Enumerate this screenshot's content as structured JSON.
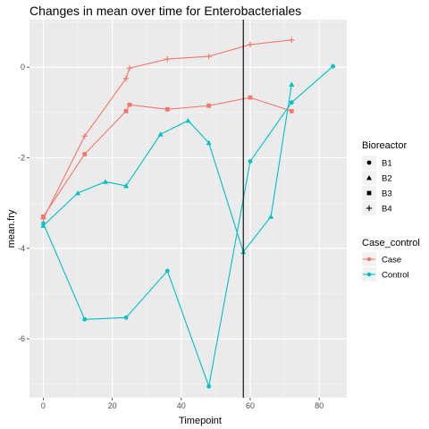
{
  "chart_data": {
    "type": "line",
    "title": "Changes in mean over time for  Enterobacteriales",
    "xlabel": "Timepoint",
    "ylabel": "mean.fry",
    "xlim": [
      -4,
      88
    ],
    "ylim": [
      -7.3,
      1.05
    ],
    "x_ticks": [
      0,
      20,
      40,
      60,
      80
    ],
    "y_ticks": [
      -6,
      -4,
      -2,
      0
    ],
    "grid": true,
    "vline_x": 58,
    "colors": {
      "Case": "#F8766D",
      "Control": "#00BFC4"
    },
    "legend_shape": {
      "title": "Bioreactor",
      "items": [
        {
          "label": "B1",
          "shape": "circle"
        },
        {
          "label": "B2",
          "shape": "triangle"
        },
        {
          "label": "B3",
          "shape": "square"
        },
        {
          "label": "B4",
          "shape": "plus"
        }
      ]
    },
    "legend_color": {
      "title": "Case_control",
      "items": [
        {
          "label": "Case",
          "color": "#F8766D"
        },
        {
          "label": "Control",
          "color": "#00BFC4"
        }
      ]
    },
    "series": [
      {
        "group": "Case",
        "bioreactor": "B4",
        "shape": "plus",
        "x": [
          0,
          12,
          24,
          25,
          36,
          48,
          60,
          72
        ],
        "y": [
          -3.35,
          -1.52,
          -0.25,
          -0.02,
          0.18,
          0.24,
          0.5,
          0.6
        ]
      },
      {
        "group": "Case",
        "bioreactor": "B3",
        "shape": "square",
        "x": [
          0,
          12,
          24,
          25,
          36,
          48,
          60,
          72
        ],
        "y": [
          -3.3,
          -1.92,
          -0.97,
          -0.83,
          -0.93,
          -0.85,
          -0.67,
          -0.97
        ]
      },
      {
        "group": "Control",
        "bioreactor": "B1",
        "shape": "circle",
        "x": [
          0,
          12,
          24,
          36,
          48,
          60,
          72,
          84
        ],
        "y": [
          -3.45,
          -5.57,
          -5.53,
          -4.5,
          -7.05,
          -2.08,
          -0.78,
          0.02
        ]
      },
      {
        "group": "Control",
        "bioreactor": "B2",
        "shape": "triangle",
        "x": [
          0,
          10,
          18,
          24,
          34,
          42,
          48,
          58,
          66,
          72
        ],
        "y": [
          -3.5,
          -2.78,
          -2.53,
          -2.62,
          -1.48,
          -1.18,
          -1.67,
          -4.08,
          -3.3,
          -0.38
        ]
      }
    ]
  }
}
